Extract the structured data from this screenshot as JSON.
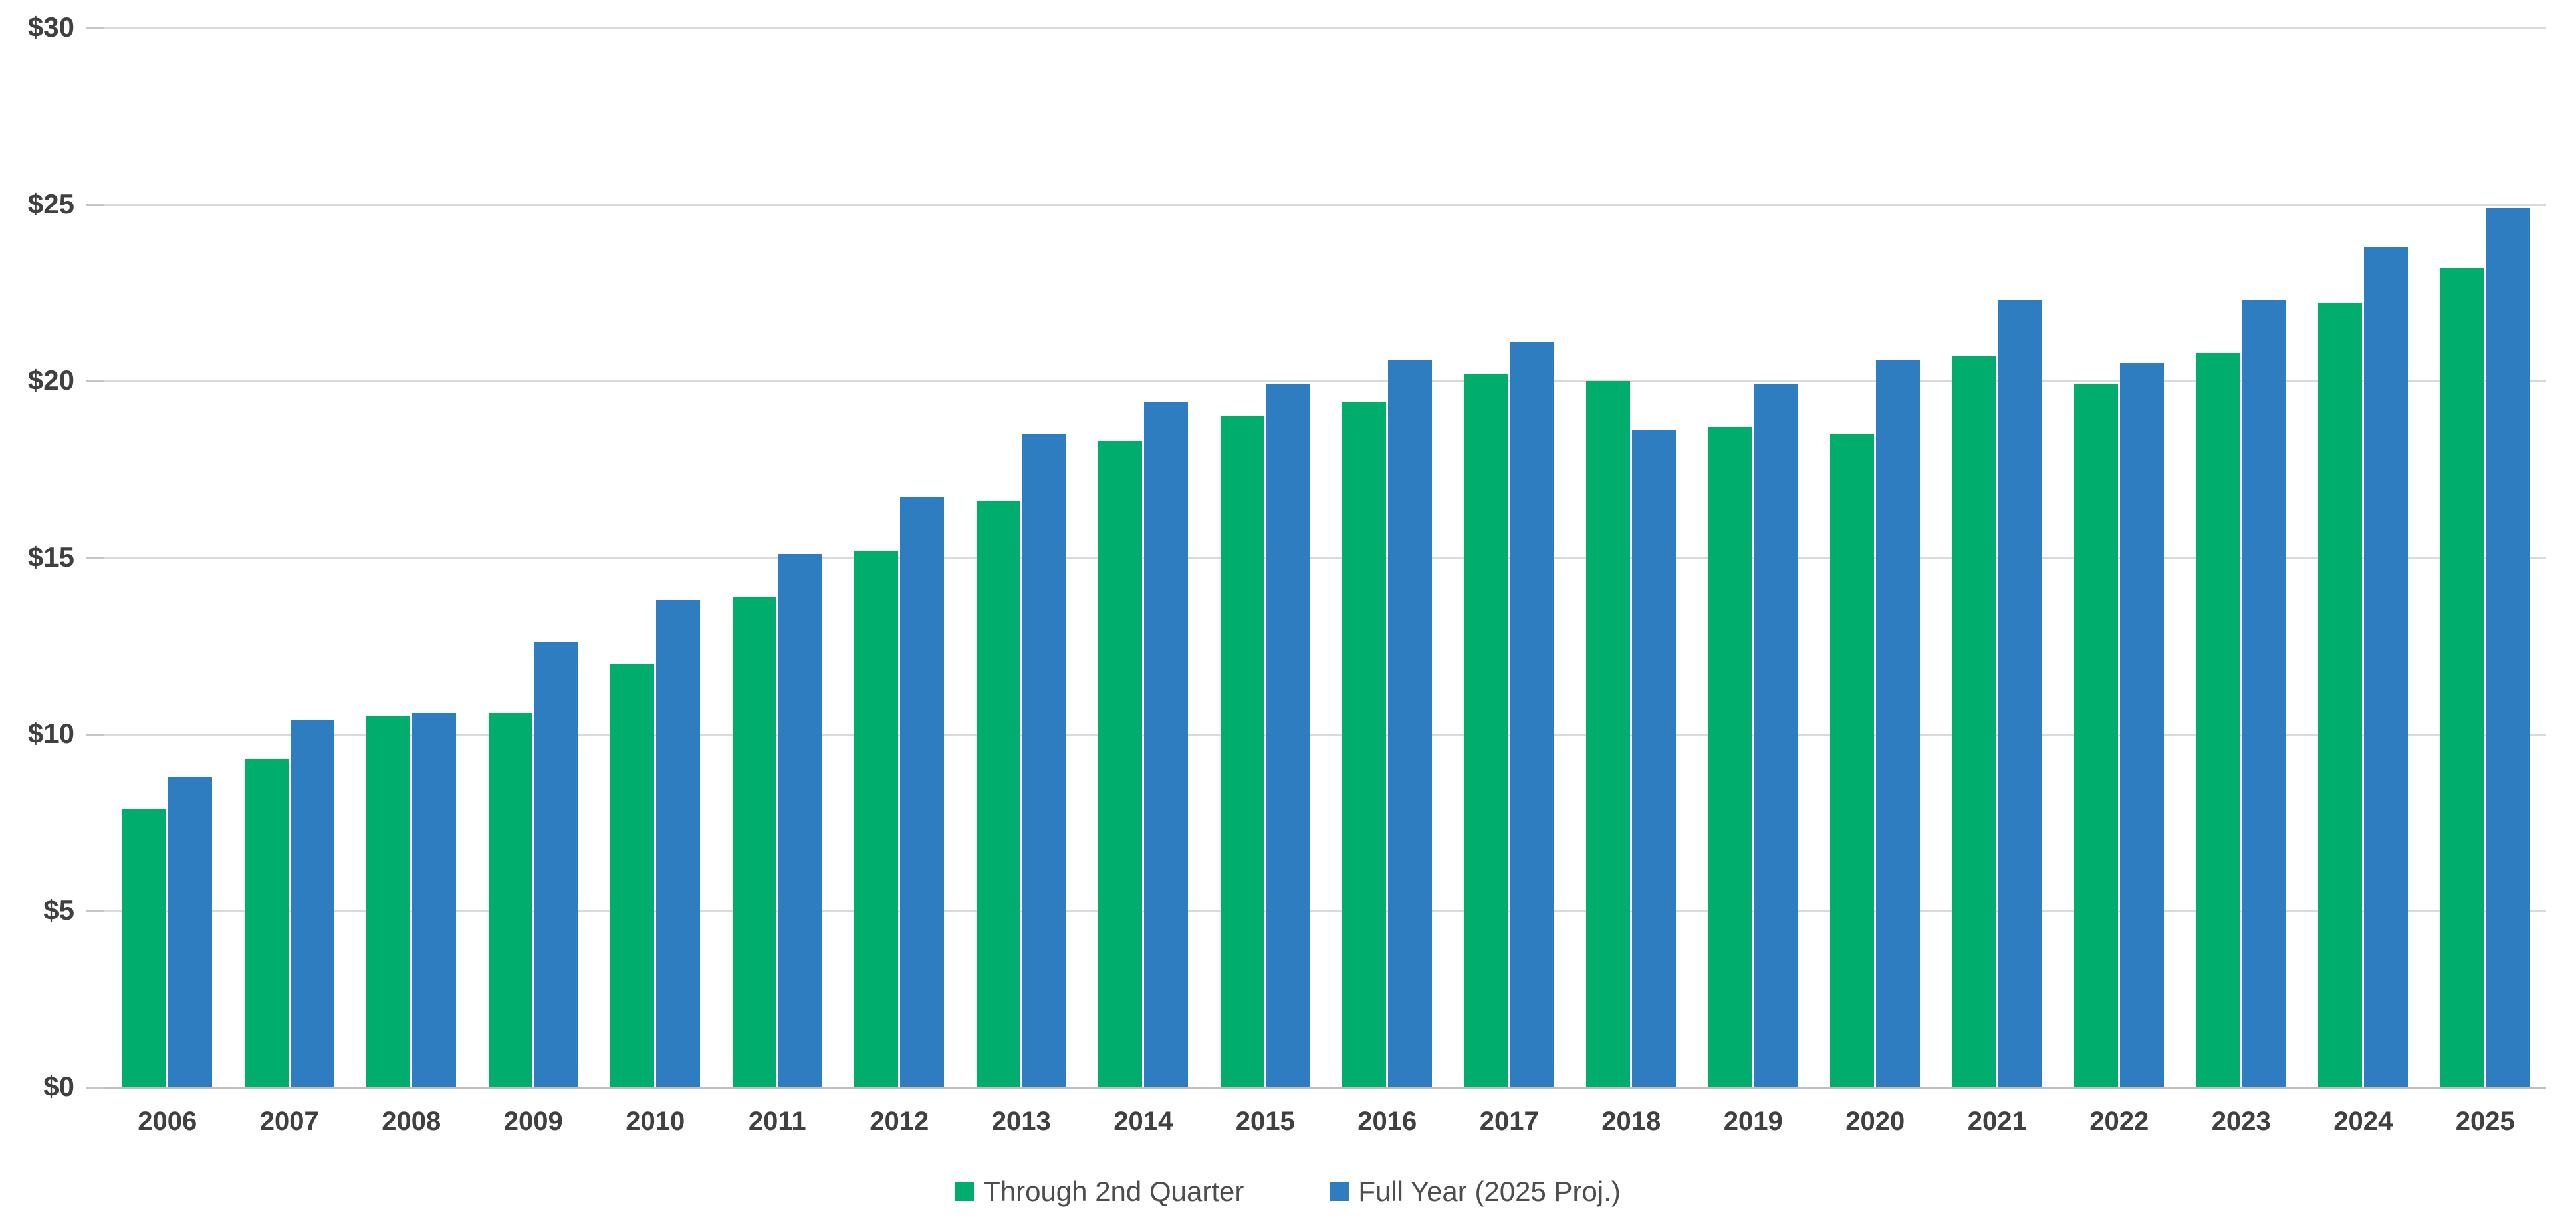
{
  "chart_data": {
    "type": "bar",
    "title": "",
    "categories": [
      "2006",
      "2007",
      "2008",
      "2009",
      "2010",
      "2011",
      "2012",
      "2013",
      "2014",
      "2015",
      "2016",
      "2017",
      "2018",
      "2019",
      "2020",
      "2021",
      "2022",
      "2023",
      "2024",
      "2025"
    ],
    "series": [
      {
        "name": "Through 2nd Quarter",
        "color": "#00ad6c",
        "values": [
          7.9,
          9.3,
          10.5,
          10.6,
          12.0,
          13.9,
          15.2,
          16.6,
          18.3,
          19.0,
          19.4,
          20.2,
          20.0,
          18.7,
          18.5,
          20.7,
          19.9,
          20.8,
          22.2,
          23.2
        ]
      },
      {
        "name": "Full Year (2025 Proj.)",
        "color": "#2f7dc1",
        "values": [
          8.8,
          10.4,
          10.6,
          12.6,
          13.8,
          15.1,
          16.7,
          18.5,
          19.4,
          19.9,
          20.6,
          21.1,
          18.6,
          19.9,
          20.6,
          22.3,
          20.5,
          22.3,
          23.8,
          24.9
        ]
      }
    ],
    "ylim": [
      0,
      30
    ],
    "ytick_step": 5,
    "ytick_labels": [
      "$0",
      "$5",
      "$10",
      "$15",
      "$20",
      "$25",
      "$30"
    ],
    "xlabel": "",
    "ylabel": "",
    "grid": true,
    "legend_position": "bottom",
    "colors": {
      "gridline": "#d9d9d9",
      "axis_line": "#bfbfbf",
      "axis_label_text": "#404040",
      "legend_text": "#4d4d4d",
      "background": "#ffffff"
    }
  }
}
